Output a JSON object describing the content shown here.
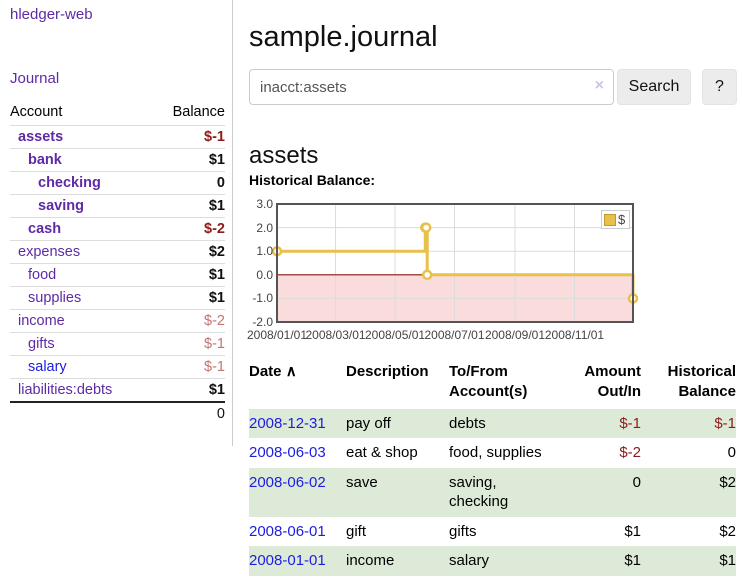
{
  "brand": "hledger-web",
  "sidebar": {
    "journal_link": "Journal",
    "account_header": "Account",
    "balance_header": "Balance",
    "accounts": [
      {
        "name": "assets",
        "balance": "$-1",
        "level": 1,
        "name_bold": true,
        "color": "purple",
        "balance_style": "bal-neg"
      },
      {
        "name": "bank",
        "balance": "$1",
        "level": 2,
        "name_bold": true,
        "color": "purple",
        "balance_style": "bal-pos"
      },
      {
        "name": "checking",
        "balance": "0",
        "level": 3,
        "name_bold": true,
        "color": "purple",
        "balance_style": "bal-pos"
      },
      {
        "name": "saving",
        "balance": "$1",
        "level": 3,
        "name_bold": true,
        "color": "purple",
        "balance_style": "bal-pos"
      },
      {
        "name": "cash",
        "balance": "$-2",
        "level": 2,
        "name_bold": true,
        "color": "purple",
        "balance_style": "bal-neg"
      },
      {
        "name": "expenses",
        "balance": "$2",
        "level": 1,
        "name_bold": false,
        "color": "purple",
        "balance_style": "bal-pos"
      },
      {
        "name": "food",
        "balance": "$1",
        "level": 2,
        "name_bold": false,
        "color": "purple",
        "balance_style": "bal-pos"
      },
      {
        "name": "supplies",
        "balance": "$1",
        "level": 2,
        "name_bold": false,
        "color": "purple",
        "balance_style": "bal-pos"
      },
      {
        "name": "income",
        "balance": "$-2",
        "level": 1,
        "name_bold": false,
        "color": "purple",
        "balance_style": "bal-negmuted"
      },
      {
        "name": "gifts",
        "balance": "$-1",
        "level": 2,
        "name_bold": false,
        "color": "purple",
        "balance_style": "bal-negmuted"
      },
      {
        "name": "salary",
        "balance": "$-1",
        "level": 2,
        "name_bold": false,
        "color": "blue",
        "balance_style": "bal-negmuted"
      },
      {
        "name": "liabilities:debts",
        "balance": "$1",
        "level": 1,
        "name_bold": false,
        "color": "purple",
        "balance_style": "bal-pos"
      }
    ],
    "total": "0"
  },
  "header": {
    "title": "sample.journal"
  },
  "search": {
    "value": "inacct:assets",
    "clear_icon": "×",
    "button_label": "Search",
    "help_label": "?"
  },
  "main": {
    "account_heading": "assets"
  },
  "chart_data": {
    "type": "line",
    "title": "Historical Balance:",
    "steps": true,
    "series": [
      {
        "name": "$",
        "color": "#e9c049",
        "points": [
          {
            "date": "2008-01-01",
            "day": 0,
            "value": 1
          },
          {
            "date": "2008-06-01",
            "day": 152,
            "value": 2
          },
          {
            "date": "2008-06-02",
            "day": 153,
            "value": 2
          },
          {
            "date": "2008-06-03",
            "day": 154,
            "value": 0
          },
          {
            "date": "2008-12-31",
            "day": 365,
            "value": -1
          }
        ]
      }
    ],
    "ylim": [
      -2,
      3
    ],
    "ytick_labels": [
      "3.0",
      "2.0",
      "1.0",
      "0.0",
      "-1.0",
      "-2.0"
    ],
    "ytick_values": [
      3,
      2,
      1,
      0,
      -1,
      -2
    ],
    "xlim_days": [
      0,
      365
    ],
    "xticks": [
      {
        "label": "2008/01/01",
        "day": 0
      },
      {
        "label": "2008/03/01",
        "day": 60
      },
      {
        "label": "2008/05/01",
        "day": 121
      },
      {
        "label": "2008/07/01",
        "day": 182
      },
      {
        "label": "2008/09/01",
        "day": 244
      },
      {
        "label": "2008/11/01",
        "day": 305
      }
    ],
    "grid": true,
    "legend_position": "top-right",
    "negative_fill": "#fbdcdc",
    "zero_line_color": "#8c1a12"
  },
  "transactions": {
    "headers": {
      "date": "Date",
      "sort_icon": "∧",
      "description": "Description",
      "tofrom_line1": "To/From",
      "tofrom_line2": "Account(s)",
      "amount_line1": "Amount",
      "amount_line2": "Out/In",
      "balance_line1": "Historical",
      "balance_line2": "Balance"
    },
    "rows": [
      {
        "date": "2008-12-31",
        "description": "pay off",
        "accounts": "debts",
        "amount": "$-1",
        "amount_negative": true,
        "balance": "$-1",
        "balance_negative": true,
        "shade": true
      },
      {
        "date": "2008-06-03",
        "description": "eat & shop",
        "accounts": "food, supplies",
        "amount": "$-2",
        "amount_negative": true,
        "balance": "0",
        "balance_negative": false,
        "shade": false
      },
      {
        "date": "2008-06-02",
        "description": "save",
        "accounts": "saving, checking",
        "amount": "0",
        "amount_negative": false,
        "balance": "$2",
        "balance_negative": false,
        "shade": true
      },
      {
        "date": "2008-06-01",
        "description": "gift",
        "accounts": "gifts",
        "amount": "$1",
        "amount_negative": false,
        "balance": "$2",
        "balance_negative": false,
        "shade": false
      },
      {
        "date": "2008-01-01",
        "description": "income",
        "accounts": "salary",
        "amount": "$1",
        "amount_negative": false,
        "balance": "$1",
        "balance_negative": false,
        "shade": true
      }
    ]
  },
  "colors": {
    "link_purple": "#5e2ba5",
    "link_blue": "#1d1de0",
    "negative_strong": "#8f1b1b",
    "negative_muted": "#c27470",
    "row_green": "#dcead7",
    "chart_gold": "#e9c049",
    "chart_negative_fill": "#fbdcdc",
    "chart_zero_line": "#8c1a12"
  }
}
